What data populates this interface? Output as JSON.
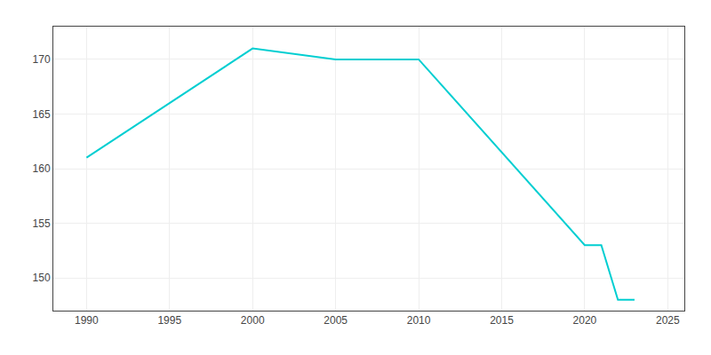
{
  "chart_data": {
    "type": "line",
    "x": [
      1990,
      2000,
      2005,
      2010,
      2020,
      2021,
      2022,
      2023
    ],
    "values": [
      161,
      171,
      170,
      170,
      153,
      153,
      148,
      148
    ],
    "color": "#00CED1",
    "xlim": [
      1988,
      2026
    ],
    "ylim": [
      147,
      173
    ],
    "xticks": [
      1990,
      1995,
      2000,
      2005,
      2010,
      2015,
      2020,
      2025
    ],
    "yticks": [
      150,
      155,
      160,
      165,
      170
    ],
    "grid": true
  }
}
